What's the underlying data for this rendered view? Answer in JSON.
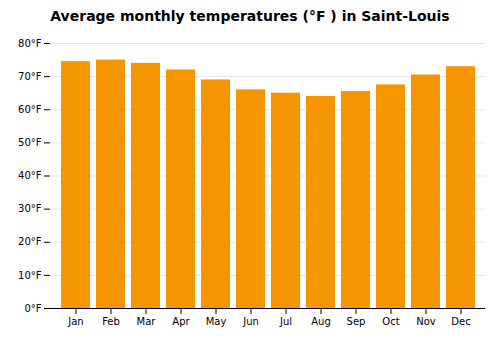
{
  "chart_data": {
    "type": "bar",
    "title": "Average monthly temperatures (°F ) in Saint-Louis",
    "categories": [
      "Jan",
      "Feb",
      "Mar",
      "Apr",
      "May",
      "Jun",
      "Jul",
      "Aug",
      "Sep",
      "Oct",
      "Nov",
      "Dec"
    ],
    "values": [
      74.5,
      75.0,
      74.0,
      72.0,
      69.0,
      66.0,
      65.0,
      64.0,
      65.5,
      67.5,
      70.5,
      73.0
    ],
    "color": "#F59500",
    "ylim": [
      0,
      80
    ],
    "yticks": [
      {
        "value": 0,
        "label": "0°F"
      },
      {
        "value": 10,
        "label": "10°F"
      },
      {
        "value": 20,
        "label": "20°F"
      },
      {
        "value": 30,
        "label": "30°F"
      },
      {
        "value": 40,
        "label": "40°F"
      },
      {
        "value": 50,
        "label": "50°F"
      },
      {
        "value": 60,
        "label": "60°F"
      },
      {
        "value": 70,
        "label": "70°F"
      },
      {
        "value": 80,
        "label": "80°F"
      }
    ],
    "grid": true
  }
}
